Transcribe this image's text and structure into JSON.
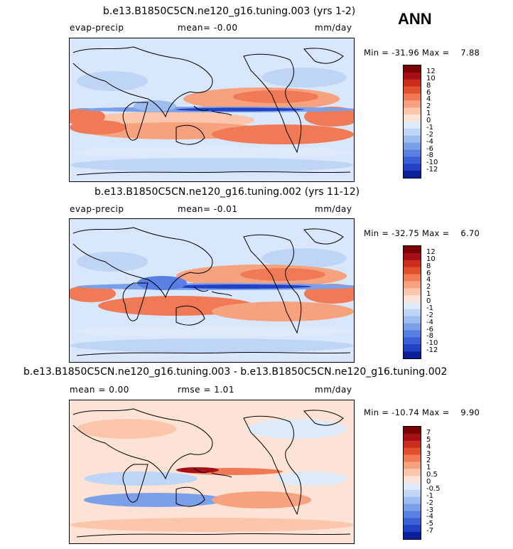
{
  "season": "ANN",
  "panels": [
    {
      "title": "b.e13.B1850C5CN.ne120_g16.tuning.003 (yrs 1-2)",
      "left_label": "evap-precip",
      "mid_label": "mean=   -0.00",
      "units": "mm/day",
      "minmax": "Min = -31.96 Max =    7.88",
      "colorbar": {
        "labels": [
          "12",
          "10",
          "8",
          "6",
          "4",
          "2",
          "1",
          "0",
          "-1",
          "-2",
          "-4",
          "-6",
          "-8",
          "-10",
          "-12"
        ],
        "colors": [
          "#7a0403",
          "#a50f15",
          "#cb2d1e",
          "#e0502d",
          "#ef7a55",
          "#f6a27f",
          "#fbc6ac",
          "#fde3d6",
          "#dceaf9",
          "#bed5f5",
          "#9dbcf0",
          "#7ba0ea",
          "#587fe2",
          "#3a5fd7",
          "#2241c4",
          "#0b1f9a"
        ]
      }
    },
    {
      "title": "b.e13.B1850C5CN.ne120_g16.tuning.002 (yrs 11-12)",
      "left_label": "evap-precip",
      "mid_label": "mean=   -0.01",
      "units": "mm/day",
      "minmax": "Min = -32.75 Max =    6.70",
      "colorbar": {
        "labels": [
          "12",
          "10",
          "8",
          "6",
          "4",
          "2",
          "1",
          "0",
          "-1",
          "-2",
          "-4",
          "-6",
          "-8",
          "-10",
          "-12"
        ],
        "colors": [
          "#7a0403",
          "#a50f15",
          "#cb2d1e",
          "#e0502d",
          "#ef7a55",
          "#f6a27f",
          "#fbc6ac",
          "#fde3d6",
          "#dceaf9",
          "#bed5f5",
          "#9dbcf0",
          "#7ba0ea",
          "#587fe2",
          "#3a5fd7",
          "#2241c4",
          "#0b1f9a"
        ]
      }
    },
    {
      "title": "b.e13.B1850C5CN.ne120_g16.tuning.003 - b.e13.B1850C5CN.ne120_g16.tuning.002",
      "left_label": "mean =   0.00",
      "mid_label": "rmse =   1.01",
      "units": "mm/day",
      "minmax": "Min = -10.74 Max =    9.90",
      "colorbar": {
        "labels": [
          "7",
          "5",
          "4",
          "3",
          "2",
          "1",
          "0.5",
          "0",
          "-0.5",
          "-1",
          "-2",
          "-3",
          "-4",
          "-5",
          "-7"
        ],
        "colors": [
          "#7a0403",
          "#a50f15",
          "#cb2d1e",
          "#e0502d",
          "#ef7a55",
          "#f6a27f",
          "#fbc6ac",
          "#fde3d6",
          "#dceaf9",
          "#bed5f5",
          "#9dbcf0",
          "#7ba0ea",
          "#587fe2",
          "#3a5fd7",
          "#2241c4",
          "#0b1f9a"
        ]
      }
    }
  ]
}
